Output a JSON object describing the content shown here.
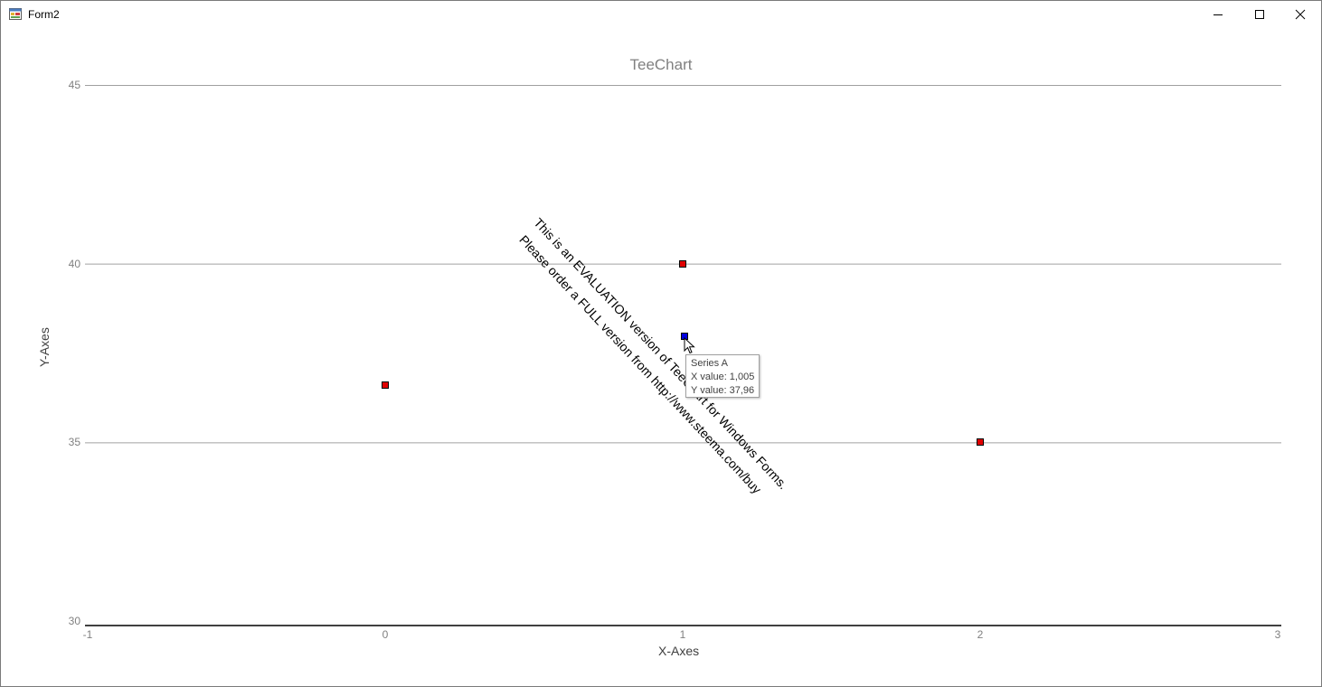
{
  "window": {
    "title": "Form2",
    "controls": [
      "minimize-icon",
      "maximize-icon",
      "close-icon"
    ]
  },
  "chart_data": {
    "type": "scatter",
    "title": "TeeChart",
    "xlabel": "X-Axes",
    "ylabel": "Y-Axes",
    "xlim": [
      -1,
      3
    ],
    "ylim": [
      30,
      45
    ],
    "x_ticks": [
      "-1",
      "0",
      "1",
      "2",
      "3"
    ],
    "y_ticks": [
      "30",
      "35",
      "40",
      "45"
    ],
    "series": [
      {
        "name": "Series A",
        "color": "#e00000",
        "points": [
          {
            "x": 0,
            "y": 36.6
          },
          {
            "x": 1,
            "y": 40
          },
          {
            "x": 1.005,
            "y": 37.96,
            "highlighted": true,
            "color": "#0000e0"
          },
          {
            "x": 2,
            "y": 35
          }
        ]
      }
    ]
  },
  "watermark": {
    "line1": "This is an EVALUATION version of TeeChart for Windows Forms.",
    "line2": "Please order a FULL version from http://www.steema.com/buy"
  },
  "tooltip": {
    "series": "Series A",
    "x_text": "X value: 1,005",
    "y_text": "Y value: 37,96"
  }
}
